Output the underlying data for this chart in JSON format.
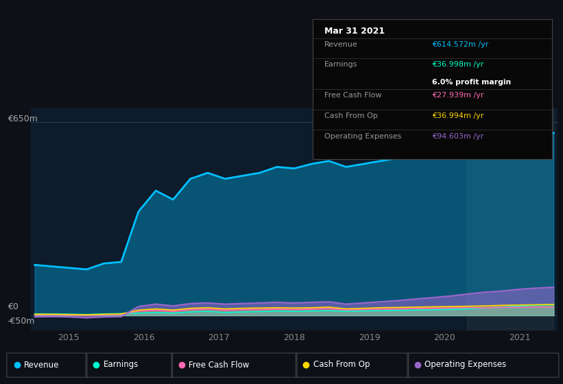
{
  "bg_color": "#0d1117",
  "chart_bg": "#0d1b2a",
  "ylim": [
    -50,
    700
  ],
  "xlim": [
    2014.5,
    2021.5
  ],
  "xticks": [
    2015,
    2016,
    2017,
    2018,
    2019,
    2020,
    2021
  ],
  "ytick_labels": [
    "-€50m",
    "€0",
    "€650m"
  ],
  "colors": {
    "revenue": "#00bfff",
    "earnings": "#00ffcc",
    "free_cash_flow": "#ff69b4",
    "cash_from_op": "#ffd700",
    "operating_expenses": "#9966cc"
  },
  "info_box": {
    "date": "Mar 31 2021",
    "revenue_val": "€614.572m /yr",
    "earnings_val": "€36.998m /yr",
    "profit_margin": "6.0% profit margin",
    "fcf_val": "€27.939m /yr",
    "cash_from_op_val": "€36.994m /yr",
    "op_exp_val": "€94.603m /yr"
  },
  "revenue": [
    170,
    165,
    160,
    155,
    175,
    180,
    350,
    420,
    390,
    460,
    480,
    460,
    470,
    480,
    500,
    495,
    510,
    520,
    500,
    510,
    520,
    530,
    540,
    545,
    550,
    560,
    580,
    600,
    610,
    620,
    614
  ],
  "earnings": [
    5,
    5,
    4,
    3,
    5,
    6,
    8,
    10,
    8,
    12,
    14,
    10,
    12,
    13,
    15,
    14,
    15,
    16,
    14,
    15,
    16,
    17,
    18,
    19,
    20,
    22,
    25,
    28,
    32,
    35,
    37
  ],
  "free_cash_flow": [
    2,
    2,
    1,
    0,
    2,
    3,
    15,
    18,
    14,
    20,
    22,
    18,
    20,
    20,
    22,
    20,
    22,
    24,
    18,
    20,
    22,
    22,
    24,
    24,
    25,
    26,
    25,
    27,
    28,
    28,
    28
  ],
  "cash_from_op": [
    4,
    4,
    3,
    2,
    4,
    5,
    18,
    22,
    18,
    24,
    26,
    22,
    24,
    25,
    26,
    25,
    26,
    28,
    22,
    24,
    26,
    27,
    28,
    29,
    30,
    31,
    32,
    34,
    35,
    36,
    37
  ],
  "operating_expenses": [
    -5,
    -4,
    -5,
    -8,
    -5,
    -4,
    30,
    38,
    32,
    40,
    42,
    38,
    40,
    42,
    44,
    42,
    44,
    46,
    38,
    42,
    46,
    50,
    55,
    60,
    65,
    72,
    78,
    82,
    88,
    92,
    95
  ]
}
